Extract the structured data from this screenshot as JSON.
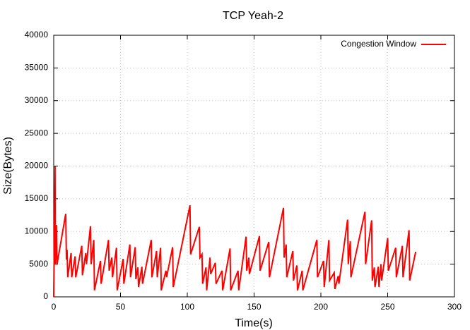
{
  "chart_data": {
    "type": "line",
    "title": "TCP Yeah-2",
    "x_label": "Time(s)",
    "y_label": "Size(Bytes)",
    "x": [
      0,
      1,
      1.2,
      2,
      2.5,
      9,
      9.5,
      10,
      10.5,
      13,
      13.5,
      16,
      16.5,
      21,
      21.5,
      24,
      24.5,
      27.5,
      28,
      30,
      30.5,
      35,
      35.5,
      41,
      41.5,
      43.5,
      44,
      47,
      47.5,
      52,
      52.5,
      57,
      57.5,
      61,
      61.5,
      63,
      63.5,
      66,
      66.5,
      73,
      73.5,
      77,
      77.5,
      80,
      80.5,
      84,
      84.5,
      89,
      89.5,
      102,
      102.5,
      109,
      109.5,
      111,
      111.5,
      114,
      114.5,
      117,
      117.5,
      121,
      121.5,
      126,
      126.5,
      132,
      132.5,
      138,
      138.5,
      144,
      144.5,
      146,
      146.5,
      154,
      154.5,
      161,
      161.5,
      172,
      172.5,
      174,
      174.5,
      179,
      179.5,
      182,
      182.5,
      186,
      186.5,
      197,
      197.5,
      202,
      202.5,
      206,
      206.5,
      210,
      210.5,
      213,
      213.5,
      220,
      220.5,
      222,
      222.5,
      233,
      233.5,
      238,
      238.5,
      240,
      240.5,
      243,
      243.5,
      245,
      245.5,
      250,
      250.5,
      256,
      256.5,
      261,
      261.5,
      266,
      266.5,
      271
    ],
    "series": [
      {
        "name": "Congestion Window",
        "color": "#ff0000",
        "values": [
          0,
          20000,
          5000,
          11000,
          5000,
          12700,
          5700,
          7200,
          3000,
          6700,
          3000,
          6200,
          3000,
          7800,
          3300,
          6700,
          5000,
          10800,
          5000,
          8700,
          1000,
          5500,
          2000,
          8700,
          4000,
          6000,
          3000,
          7500,
          1000,
          5800,
          2000,
          8000,
          3000,
          7600,
          2700,
          4500,
          1500,
          4600,
          2000,
          8700,
          3000,
          7000,
          3000,
          7500,
          1000,
          4000,
          3000,
          7600,
          1500,
          14000,
          6500,
          10700,
          6000,
          6500,
          2000,
          4500,
          1000,
          6000,
          3500,
          5200,
          2000,
          4000,
          1000,
          7400,
          1000,
          4000,
          1000,
          9200,
          4000,
          6000,
          3500,
          9300,
          4000,
          8400,
          3000,
          13600,
          6000,
          8000,
          3000,
          7000,
          2500,
          4800,
          1000,
          4000,
          1000,
          8700,
          3000,
          5500,
          1500,
          8700,
          2500,
          3700,
          1200,
          3200,
          2000,
          11800,
          5000,
          8500,
          3000,
          13000,
          5000,
          11700,
          2500,
          4500,
          1500,
          4600,
          1500,
          5000,
          2500,
          9000,
          4000,
          7500,
          3000,
          7800,
          3000,
          10200,
          2500,
          6900
        ]
      }
    ],
    "xlim": [
      0,
      300
    ],
    "xticks": [
      0,
      50,
      100,
      150,
      200,
      250,
      300
    ],
    "ylim": [
      0,
      40000
    ],
    "yticks": [
      0,
      5000,
      10000,
      15000,
      20000,
      25000,
      30000,
      35000,
      40000
    ],
    "grid": true,
    "legend": "top-right"
  }
}
